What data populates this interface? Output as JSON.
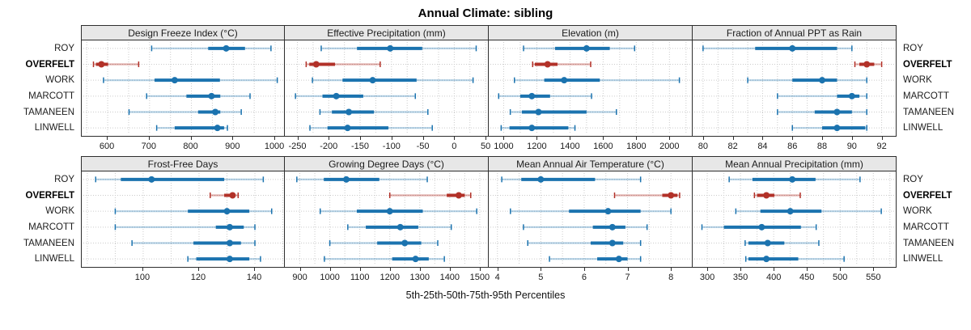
{
  "chart_data": {
    "type": "dotplot-percentiles",
    "title": "Annual Climate: sibling",
    "xlabel": "5th-25th-50th-75th-95th Percentiles",
    "percentile_levels": [
      5,
      25,
      50,
      75,
      95
    ],
    "sites": [
      "ROY",
      "OVERFELT",
      "WORK",
      "MARCOTT",
      "TAMANEEN",
      "LINWELL"
    ],
    "highlight_site": "OVERFELT",
    "legend_position": "none",
    "grid": "dotted",
    "panels": [
      {
        "id": "design-freeze-index",
        "row": 1,
        "title": "Design Freeze Index (°C)",
        "xlim": [
          538,
          1025
        ],
        "ticks": [
          600,
          700,
          800,
          900,
          1000
        ],
        "values": {
          "ROY": [
            705,
            840,
            883,
            928,
            990
          ],
          "OVERFELT": [
            566,
            572,
            585,
            601,
            674
          ],
          "WORK": [
            590,
            712,
            760,
            868,
            1005
          ],
          "MARCOTT": [
            693,
            788,
            848,
            869,
            940
          ],
          "TAMANEEN": [
            651,
            816,
            857,
            869,
            919
          ],
          "LINWELL": [
            717,
            760,
            862,
            878,
            886
          ]
        }
      },
      {
        "id": "effective-precipitation",
        "row": 1,
        "title": "Effective Precipitation (mm)",
        "xlim": [
          -270,
          55
        ],
        "ticks": [
          -250,
          -200,
          -150,
          -100,
          -50,
          0,
          50
        ],
        "values": {
          "ROY": [
            -212,
            -155,
            -102,
            -51,
            35
          ],
          "OVERFELT": [
            -236,
            -231,
            -220,
            -190,
            -118
          ],
          "WORK": [
            -226,
            -178,
            -130,
            -60,
            30
          ],
          "MARCOTT": [
            -253,
            -210,
            -188,
            -145,
            -62
          ],
          "TAMANEEN": [
            -214,
            -195,
            -168,
            -128,
            -42
          ],
          "LINWELL": [
            -230,
            -202,
            -170,
            -105,
            -35
          ]
        }
      },
      {
        "id": "elevation",
        "row": 1,
        "title": "Elevation (m)",
        "xlim": [
          910,
          2140
        ],
        "ticks": [
          1000,
          1200,
          1400,
          1600,
          1800,
          2000
        ],
        "values": {
          "ROY": [
            1120,
            1310,
            1500,
            1640,
            1790
          ],
          "OVERFELT": [
            1175,
            1188,
            1265,
            1325,
            1525
          ],
          "WORK": [
            1065,
            1245,
            1365,
            1580,
            2060
          ],
          "MARCOTT": [
            970,
            1100,
            1170,
            1280,
            1530
          ],
          "TAMANEEN": [
            1040,
            1110,
            1210,
            1500,
            1680
          ],
          "LINWELL": [
            985,
            1035,
            1170,
            1390,
            1430
          ]
        }
      },
      {
        "id": "fraction-annual-ppt-rain",
        "row": 1,
        "title": "Fraction of Annual PPT as Rain",
        "xlim": [
          79.3,
          93
        ],
        "ticks": [
          80,
          82,
          84,
          86,
          88,
          90,
          92
        ],
        "values": {
          "ROY": [
            80,
            83.5,
            86,
            89,
            90
          ],
          "OVERFELT": [
            90.2,
            90.5,
            91,
            91.5,
            92
          ],
          "WORK": [
            83,
            86,
            88,
            89,
            91
          ],
          "MARCOTT": [
            85,
            89,
            90,
            90.5,
            91
          ],
          "TAMANEEN": [
            85,
            87.5,
            89,
            90,
            91
          ],
          "LINWELL": [
            86,
            88,
            89,
            90.9,
            91
          ]
        }
      },
      {
        "id": "frost-free-days",
        "row": 2,
        "title": "Frost-Free Days",
        "xlim": [
          78,
          151
        ],
        "ticks": [
          100,
          120,
          140
        ],
        "values": {
          "ROY": [
            83,
            92,
            103,
            129,
            143
          ],
          "OVERFELT": [
            124,
            129,
            132,
            133,
            134
          ],
          "WORK": [
            90,
            116,
            130,
            138,
            146
          ],
          "MARCOTT": [
            90,
            126,
            131,
            136,
            140
          ],
          "TAMANEEN": [
            96,
            118,
            131,
            135,
            140
          ],
          "LINWELL": [
            116,
            119,
            131,
            138,
            142
          ]
        }
      },
      {
        "id": "growing-degree-days",
        "row": 2,
        "title": "Growing Degree Days (°C)",
        "xlim": [
          850,
          1530
        ],
        "ticks": [
          900,
          1000,
          1100,
          1200,
          1300,
          1400,
          1500
        ],
        "values": {
          "ROY": [
            890,
            980,
            1055,
            1165,
            1325
          ],
          "OVERFELT": [
            1200,
            1390,
            1430,
            1450,
            1470
          ],
          "WORK": [
            968,
            1090,
            1200,
            1310,
            1490
          ],
          "MARCOTT": [
            1060,
            1120,
            1235,
            1295,
            1405
          ],
          "TAMANEEN": [
            1000,
            1158,
            1250,
            1305,
            1360
          ],
          "LINWELL": [
            982,
            1208,
            1286,
            1330,
            1382
          ]
        }
      },
      {
        "id": "mean-annual-air-temperature",
        "row": 2,
        "title": "Mean Annual Air Temperature (°C)",
        "xlim": [
          3.8,
          8.5
        ],
        "ticks": [
          4,
          5,
          6,
          7,
          8
        ],
        "values": {
          "ROY": [
            4.1,
            4.55,
            5.0,
            6.25,
            7.3
          ],
          "OVERFELT": [
            6.7,
            7.8,
            8.0,
            8.15,
            8.2
          ],
          "WORK": [
            4.3,
            5.65,
            6.55,
            7.3,
            8.0
          ],
          "MARCOTT": [
            4.6,
            6.2,
            6.65,
            6.95,
            7.45
          ],
          "TAMANEEN": [
            4.7,
            6.15,
            6.65,
            6.9,
            7.3
          ],
          "LINWELL": [
            5.2,
            6.3,
            6.8,
            7.0,
            7.3
          ]
        }
      },
      {
        "id": "mean-annual-precipitation",
        "row": 2,
        "title": "Mean Annual Precipitation (mm)",
        "xlim": [
          278,
          585
        ],
        "ticks": [
          300,
          350,
          400,
          450,
          500,
          550
        ],
        "values": {
          "ROY": [
            333,
            368,
            428,
            463,
            530
          ],
          "OVERFELT": [
            371,
            375,
            389,
            401,
            440
          ],
          "WORK": [
            343,
            380,
            425,
            472,
            562
          ],
          "MARCOTT": [
            292,
            325,
            382,
            441,
            464
          ],
          "TAMANEEN": [
            357,
            362,
            391,
            416,
            468
          ],
          "LINWELL": [
            358,
            362,
            389,
            437,
            506
          ]
        }
      }
    ],
    "colors": {
      "series_blue": "#1b73af",
      "series_blue_light": "rgba(27,115,175,0.33)",
      "series_red": "#b23128",
      "series_red_light": "rgba(178,49,40,0.40)",
      "gridline": "#cbcbcb",
      "strip_bg": "#e7e7e7",
      "panel_border": "#2e2e2e"
    }
  }
}
